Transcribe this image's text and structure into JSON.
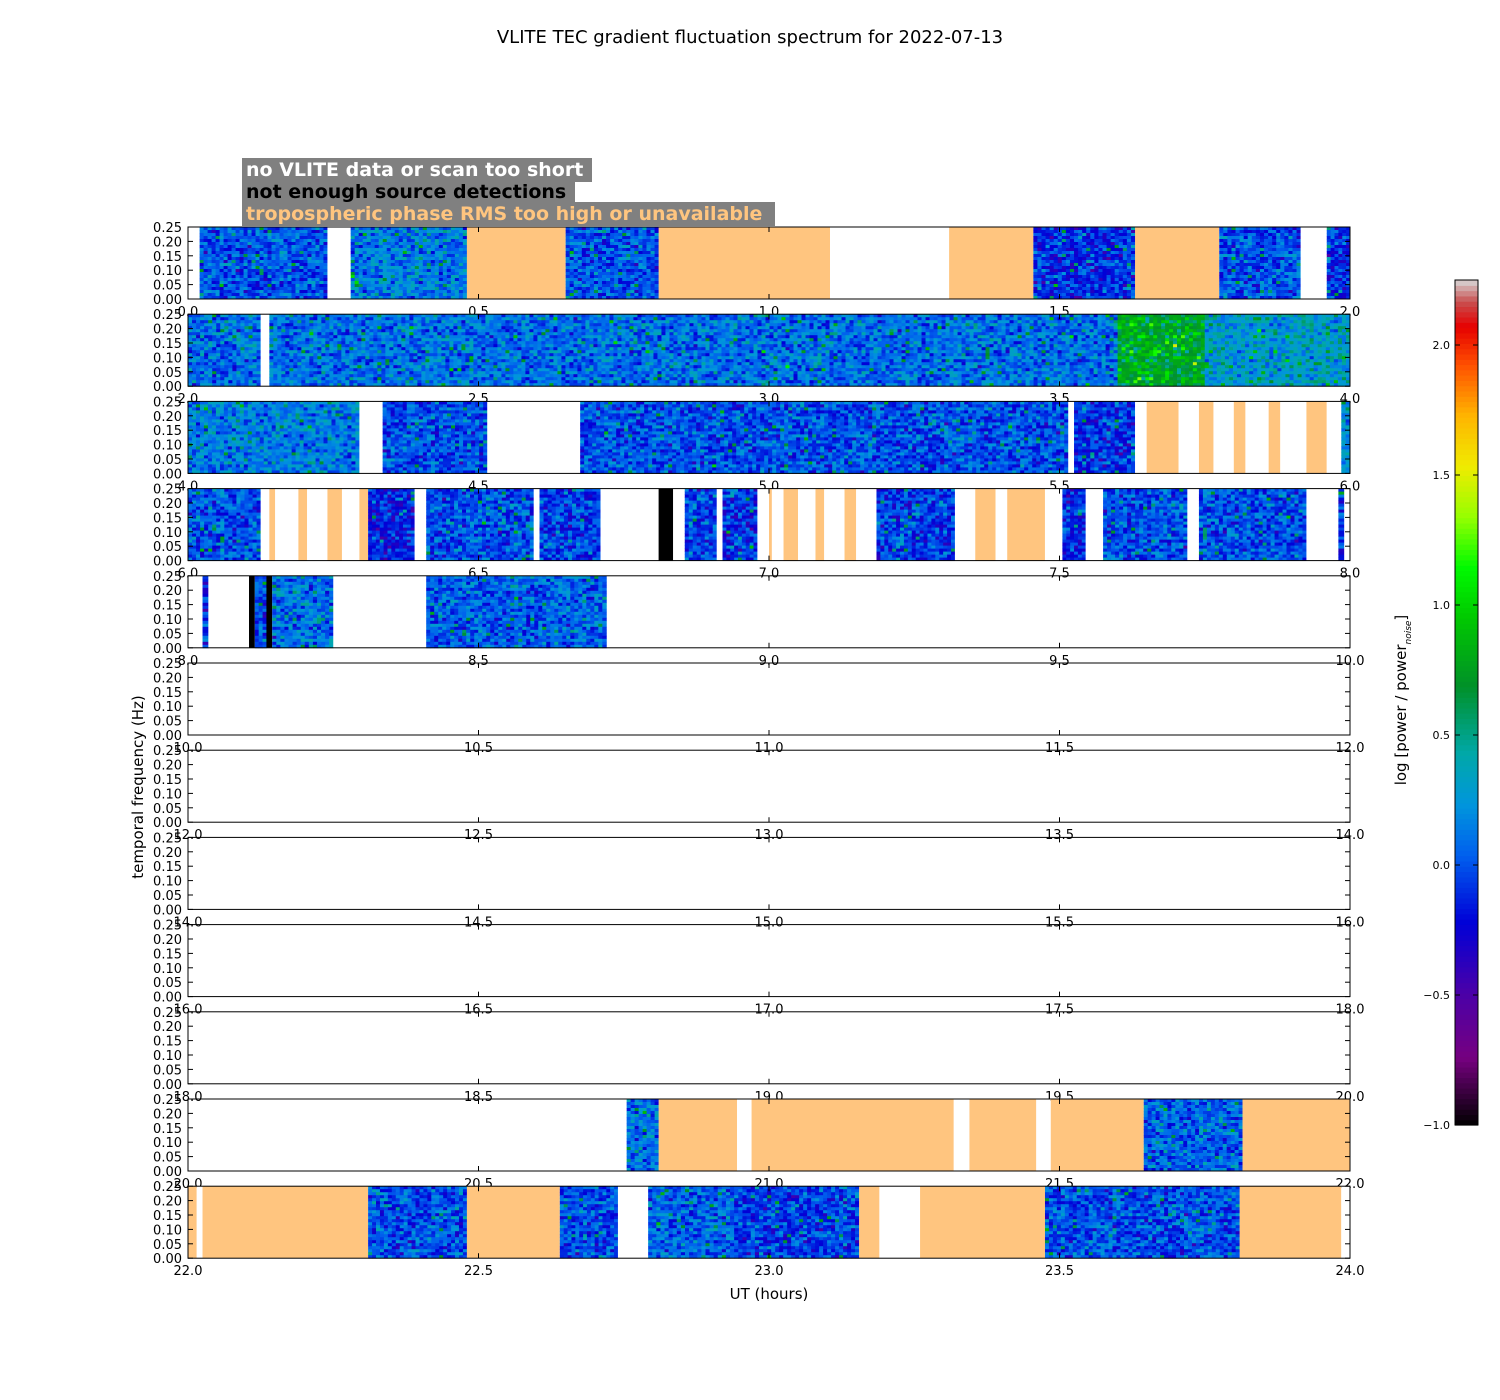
{
  "chart_data": {
    "type": "heatmap",
    "title": "VLITE TEC gradient fluctuation spectrum for 2022-07-13",
    "xlabel": "UT (hours)",
    "ylabel": "temporal frequency (Hz)",
    "colorbar_label": "log [power / power",
    "colorbar_label_sub": "noise",
    "colorbar_label_end": "]",
    "colorbar_range": [
      -1.0,
      2.25
    ],
    "colorbar_ticks": [
      "−1.0",
      "−0.5",
      "0.0",
      "0.5",
      "1.0",
      "1.5",
      "2.0"
    ],
    "colorbar_tick_values": [
      -1.0,
      -0.5,
      0.0,
      0.5,
      1.0,
      1.5,
      2.0
    ],
    "ylim": [
      0,
      0.25
    ],
    "y_ticks": [
      "0.00",
      "0.05",
      "0.10",
      "0.15",
      "0.20",
      "0.25"
    ],
    "legend": [
      {
        "label": "no VLITE data or scan too short",
        "text_color": "#ffffff",
        "category": "no_data"
      },
      {
        "label": "not enough source detections",
        "text_color": "#000000",
        "category": "few_detections"
      },
      {
        "label": "tropospheric phase RMS too high or unavailable",
        "text_color": "#ffc57f",
        "category": "trop"
      }
    ],
    "colors": {
      "no_data": "#ffffff",
      "few_detections": "#000000",
      "trop": "#ffc57f",
      "legend_bg": "#808080"
    },
    "panels": [
      {
        "xlim": [
          0,
          2
        ],
        "x_ticks": [
          "0.0",
          "0.5",
          "1.0",
          "1.5",
          "2.0"
        ],
        "segments": [
          {
            "x0": 0.0,
            "x1": 0.02,
            "kind": "no_data"
          },
          {
            "x0": 0.02,
            "x1": 0.24,
            "kind": "spec",
            "mean": 0.0
          },
          {
            "x0": 0.24,
            "x1": 0.28,
            "kind": "no_data"
          },
          {
            "x0": 0.28,
            "x1": 0.48,
            "kind": "spec",
            "mean": 0.15
          },
          {
            "x0": 0.48,
            "x1": 0.65,
            "kind": "trop"
          },
          {
            "x0": 0.65,
            "x1": 0.81,
            "kind": "spec",
            "mean": 0.0
          },
          {
            "x0": 0.81,
            "x1": 1.105,
            "kind": "trop"
          },
          {
            "x0": 1.105,
            "x1": 1.31,
            "kind": "no_data"
          },
          {
            "x0": 1.31,
            "x1": 1.455,
            "kind": "trop"
          },
          {
            "x0": 1.455,
            "x1": 1.63,
            "kind": "spec",
            "mean": -0.1
          },
          {
            "x0": 1.63,
            "x1": 1.775,
            "kind": "trop"
          },
          {
            "x0": 1.775,
            "x1": 1.915,
            "kind": "spec",
            "mean": 0.0
          },
          {
            "x0": 1.915,
            "x1": 1.96,
            "kind": "no_data"
          },
          {
            "x0": 1.96,
            "x1": 2.0,
            "kind": "spec",
            "mean": -0.1
          }
        ]
      },
      {
        "xlim": [
          2,
          4
        ],
        "x_ticks": [
          "2.0",
          "2.5",
          "3.0",
          "3.5",
          "4.0"
        ],
        "segments": [
          {
            "x0": 2.0,
            "x1": 2.125,
            "kind": "spec",
            "mean": 0.1
          },
          {
            "x0": 2.125,
            "x1": 2.14,
            "kind": "no_data"
          },
          {
            "x0": 2.14,
            "x1": 3.6,
            "kind": "spec",
            "mean": 0.1
          },
          {
            "x0": 3.6,
            "x1": 3.75,
            "kind": "spec",
            "mean": 0.75
          },
          {
            "x0": 3.75,
            "x1": 4.0,
            "kind": "spec",
            "mean": 0.3
          }
        ]
      },
      {
        "xlim": [
          4,
          6
        ],
        "x_ticks": [
          "4.0",
          "4.5",
          "5.0",
          "5.5",
          "6.0"
        ],
        "segments": [
          {
            "x0": 4.0,
            "x1": 4.295,
            "kind": "spec",
            "mean": 0.15
          },
          {
            "x0": 4.295,
            "x1": 4.335,
            "kind": "no_data"
          },
          {
            "x0": 4.335,
            "x1": 4.515,
            "kind": "spec",
            "mean": 0.0
          },
          {
            "x0": 4.515,
            "x1": 4.675,
            "kind": "no_data"
          },
          {
            "x0": 4.675,
            "x1": 5.515,
            "kind": "spec",
            "mean": 0.0
          },
          {
            "x0": 5.515,
            "x1": 5.525,
            "kind": "no_data"
          },
          {
            "x0": 5.525,
            "x1": 5.63,
            "kind": "spec",
            "mean": -0.1
          },
          {
            "x0": 5.63,
            "x1": 5.65,
            "kind": "no_data"
          },
          {
            "x0": 5.65,
            "x1": 5.705,
            "kind": "trop"
          },
          {
            "x0": 5.705,
            "x1": 5.74,
            "kind": "no_data"
          },
          {
            "x0": 5.74,
            "x1": 5.765,
            "kind": "trop"
          },
          {
            "x0": 5.765,
            "x1": 5.8,
            "kind": "no_data"
          },
          {
            "x0": 5.8,
            "x1": 5.82,
            "kind": "trop"
          },
          {
            "x0": 5.82,
            "x1": 5.86,
            "kind": "no_data"
          },
          {
            "x0": 5.86,
            "x1": 5.88,
            "kind": "trop"
          },
          {
            "x0": 5.88,
            "x1": 5.925,
            "kind": "no_data"
          },
          {
            "x0": 5.925,
            "x1": 5.96,
            "kind": "trop"
          },
          {
            "x0": 5.96,
            "x1": 5.985,
            "kind": "no_data"
          },
          {
            "x0": 5.985,
            "x1": 6.0,
            "kind": "spec",
            "mean": 0.2
          }
        ]
      },
      {
        "xlim": [
          6,
          8
        ],
        "x_ticks": [
          "6.0",
          "6.5",
          "7.0",
          "7.5",
          "8.0"
        ],
        "segments": [
          {
            "x0": 6.0,
            "x1": 6.125,
            "kind": "spec",
            "mean": 0.0
          },
          {
            "x0": 6.125,
            "x1": 6.14,
            "kind": "no_data"
          },
          {
            "x0": 6.14,
            "x1": 6.15,
            "kind": "trop"
          },
          {
            "x0": 6.15,
            "x1": 6.19,
            "kind": "no_data"
          },
          {
            "x0": 6.19,
            "x1": 6.205,
            "kind": "trop"
          },
          {
            "x0": 6.205,
            "x1": 6.24,
            "kind": "no_data"
          },
          {
            "x0": 6.24,
            "x1": 6.265,
            "kind": "trop"
          },
          {
            "x0": 6.265,
            "x1": 6.295,
            "kind": "no_data"
          },
          {
            "x0": 6.295,
            "x1": 6.31,
            "kind": "trop"
          },
          {
            "x0": 6.31,
            "x1": 6.39,
            "kind": "spec",
            "mean": -0.15
          },
          {
            "x0": 6.39,
            "x1": 6.41,
            "kind": "no_data"
          },
          {
            "x0": 6.41,
            "x1": 6.595,
            "kind": "spec",
            "mean": 0.0
          },
          {
            "x0": 6.595,
            "x1": 6.605,
            "kind": "no_data"
          },
          {
            "x0": 6.605,
            "x1": 6.71,
            "kind": "spec",
            "mean": -0.05
          },
          {
            "x0": 6.71,
            "x1": 6.81,
            "kind": "no_data"
          },
          {
            "x0": 6.81,
            "x1": 6.835,
            "kind": "few_detections"
          },
          {
            "x0": 6.835,
            "x1": 6.855,
            "kind": "no_data"
          },
          {
            "x0": 6.855,
            "x1": 6.91,
            "kind": "spec",
            "mean": -0.05
          },
          {
            "x0": 6.91,
            "x1": 6.92,
            "kind": "no_data"
          },
          {
            "x0": 6.92,
            "x1": 6.98,
            "kind": "spec",
            "mean": -0.1
          },
          {
            "x0": 6.98,
            "x1": 7.0,
            "kind": "no_data"
          },
          {
            "x0": 7.0,
            "x1": 7.005,
            "kind": "trop"
          },
          {
            "x0": 7.005,
            "x1": 7.025,
            "kind": "no_data"
          },
          {
            "x0": 7.025,
            "x1": 7.05,
            "kind": "trop"
          },
          {
            "x0": 7.05,
            "x1": 7.08,
            "kind": "no_data"
          },
          {
            "x0": 7.08,
            "x1": 7.095,
            "kind": "trop"
          },
          {
            "x0": 7.095,
            "x1": 7.13,
            "kind": "no_data"
          },
          {
            "x0": 7.13,
            "x1": 7.15,
            "kind": "trop"
          },
          {
            "x0": 7.15,
            "x1": 7.185,
            "kind": "no_data"
          },
          {
            "x0": 7.185,
            "x1": 7.32,
            "kind": "spec",
            "mean": -0.05
          },
          {
            "x0": 7.32,
            "x1": 7.355,
            "kind": "no_data"
          },
          {
            "x0": 7.355,
            "x1": 7.39,
            "kind": "trop"
          },
          {
            "x0": 7.39,
            "x1": 7.41,
            "kind": "no_data"
          },
          {
            "x0": 7.41,
            "x1": 7.475,
            "kind": "trop"
          },
          {
            "x0": 7.475,
            "x1": 7.505,
            "kind": "no_data"
          },
          {
            "x0": 7.505,
            "x1": 7.545,
            "kind": "spec",
            "mean": -0.1
          },
          {
            "x0": 7.545,
            "x1": 7.575,
            "kind": "no_data"
          },
          {
            "x0": 7.575,
            "x1": 7.72,
            "kind": "spec",
            "mean": 0.0
          },
          {
            "x0": 7.72,
            "x1": 7.74,
            "kind": "no_data"
          },
          {
            "x0": 7.74,
            "x1": 7.925,
            "kind": "spec",
            "mean": 0.0
          },
          {
            "x0": 7.925,
            "x1": 7.98,
            "kind": "no_data"
          },
          {
            "x0": 7.98,
            "x1": 7.99,
            "kind": "spec",
            "mean": -0.1
          },
          {
            "x0": 7.99,
            "x1": 8.0,
            "kind": "no_data"
          }
        ]
      },
      {
        "xlim": [
          8,
          10
        ],
        "x_ticks": [
          "8.0",
          "8.5",
          "9.0",
          "9.5",
          "10.0"
        ],
        "segments": [
          {
            "x0": 8.0,
            "x1": 8.025,
            "kind": "no_data"
          },
          {
            "x0": 8.025,
            "x1": 8.035,
            "kind": "spec",
            "mean": -0.1
          },
          {
            "x0": 8.035,
            "x1": 8.105,
            "kind": "no_data"
          },
          {
            "x0": 8.105,
            "x1": 8.115,
            "kind": "few_detections"
          },
          {
            "x0": 8.115,
            "x1": 8.135,
            "kind": "spec",
            "mean": 0.0
          },
          {
            "x0": 8.135,
            "x1": 8.145,
            "kind": "few_detections"
          },
          {
            "x0": 8.145,
            "x1": 8.25,
            "kind": "spec",
            "mean": 0.1
          },
          {
            "x0": 8.25,
            "x1": 8.41,
            "kind": "no_data"
          },
          {
            "x0": 8.41,
            "x1": 8.72,
            "kind": "spec",
            "mean": 0.05
          }
        ]
      },
      {
        "xlim": [
          10,
          12
        ],
        "x_ticks": [
          "10.0",
          "10.5",
          "11.0",
          "11.5",
          "12.0"
        ],
        "segments": []
      },
      {
        "xlim": [
          12,
          14
        ],
        "x_ticks": [
          "12.0",
          "12.5",
          "13.0",
          "13.5",
          "14.0"
        ],
        "segments": []
      },
      {
        "xlim": [
          14,
          16
        ],
        "x_ticks": [
          "14.0",
          "14.5",
          "15.0",
          "15.5",
          "16.0"
        ],
        "segments": []
      },
      {
        "xlim": [
          16,
          18
        ],
        "x_ticks": [
          "16.0",
          "16.5",
          "17.0",
          "17.5",
          "18.0"
        ],
        "segments": []
      },
      {
        "xlim": [
          18,
          20
        ],
        "x_ticks": [
          "18.0",
          "18.5",
          "19.0",
          "19.5",
          "20.0"
        ],
        "segments": []
      },
      {
        "xlim": [
          20,
          22
        ],
        "x_ticks": [
          "20.0",
          "20.5",
          "21.0",
          "21.5",
          "22.0"
        ],
        "segments": [
          {
            "x0": 20.755,
            "x1": 20.81,
            "kind": "spec",
            "mean": 0.1
          },
          {
            "x0": 20.81,
            "x1": 20.945,
            "kind": "trop"
          },
          {
            "x0": 20.945,
            "x1": 20.97,
            "kind": "no_data"
          },
          {
            "x0": 20.97,
            "x1": 21.318,
            "kind": "trop"
          },
          {
            "x0": 21.318,
            "x1": 21.345,
            "kind": "no_data"
          },
          {
            "x0": 21.345,
            "x1": 21.46,
            "kind": "trop"
          },
          {
            "x0": 21.46,
            "x1": 21.485,
            "kind": "no_data"
          },
          {
            "x0": 21.485,
            "x1": 21.645,
            "kind": "trop"
          },
          {
            "x0": 21.645,
            "x1": 21.815,
            "kind": "spec",
            "mean": 0.05
          },
          {
            "x0": 21.815,
            "x1": 22.0,
            "kind": "trop"
          }
        ]
      },
      {
        "xlim": [
          22,
          24
        ],
        "x_ticks": [
          "22.0",
          "22.5",
          "23.0",
          "23.5",
          "24.0"
        ],
        "segments": [
          {
            "x0": 22.0,
            "x1": 22.015,
            "kind": "trop"
          },
          {
            "x0": 22.015,
            "x1": 22.025,
            "kind": "no_data"
          },
          {
            "x0": 22.025,
            "x1": 22.31,
            "kind": "trop"
          },
          {
            "x0": 22.31,
            "x1": 22.48,
            "kind": "spec",
            "mean": 0.0
          },
          {
            "x0": 22.48,
            "x1": 22.64,
            "kind": "trop"
          },
          {
            "x0": 22.64,
            "x1": 22.74,
            "kind": "spec",
            "mean": 0.0
          },
          {
            "x0": 22.74,
            "x1": 22.792,
            "kind": "no_data"
          },
          {
            "x0": 22.792,
            "x1": 22.94,
            "kind": "spec",
            "mean": 0.05
          },
          {
            "x0": 22.94,
            "x1": 22.99,
            "kind": "spec",
            "mean": -0.05
          },
          {
            "x0": 22.99,
            "x1": 23.155,
            "kind": "spec",
            "mean": -0.05
          },
          {
            "x0": 23.155,
            "x1": 23.19,
            "kind": "trop"
          },
          {
            "x0": 23.19,
            "x1": 23.26,
            "kind": "no_data"
          },
          {
            "x0": 23.26,
            "x1": 23.475,
            "kind": "trop"
          },
          {
            "x0": 23.475,
            "x1": 23.81,
            "kind": "spec",
            "mean": 0.0
          },
          {
            "x0": 23.81,
            "x1": 23.985,
            "kind": "trop"
          },
          {
            "x0": 23.985,
            "x1": 24.0,
            "kind": "no_data"
          }
        ]
      }
    ]
  }
}
